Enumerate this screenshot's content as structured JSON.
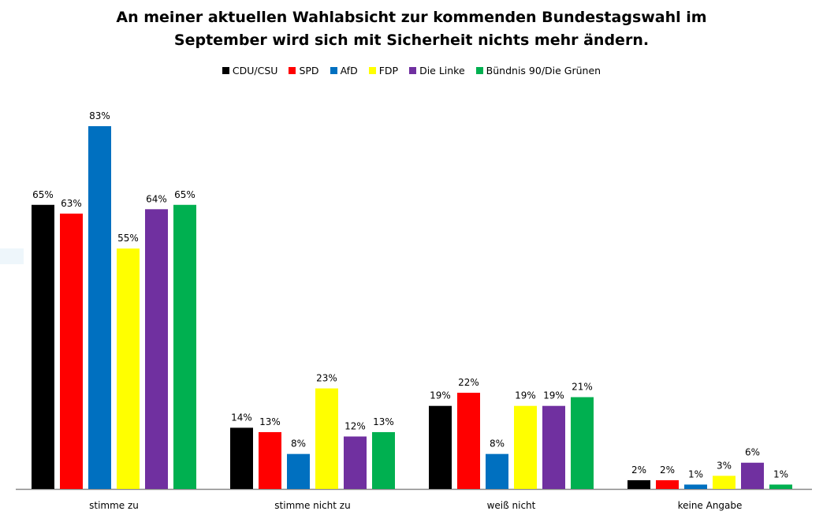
{
  "chart_data": {
    "type": "bar",
    "title": "An meiner aktuellen Wahlabsicht zur kommenden Bundestagswahl im September wird sich mit Sicherheit nichts mehr ändern.",
    "title_lines": [
      "An meiner aktuellen Wahlabsicht zur kommenden Bundestagswahl im",
      "September wird sich mit Sicherheit nichts mehr ändern."
    ],
    "categories": [
      "stimme zu",
      "stimme nicht zu",
      "weiß nicht",
      "keine Angabe"
    ],
    "series": [
      {
        "name": "CDU/CSU",
        "color": "#000000",
        "values": [
          65,
          14,
          19,
          2
        ]
      },
      {
        "name": "SPD",
        "color": "#ff0000",
        "values": [
          63,
          13,
          22,
          2
        ]
      },
      {
        "name": "AfD",
        "color": "#0070c0",
        "values": [
          83,
          8,
          8,
          1
        ]
      },
      {
        "name": "FDP",
        "color": "#ffff00",
        "values": [
          55,
          23,
          19,
          3
        ]
      },
      {
        "name": "Die Linke",
        "color": "#7030a0",
        "values": [
          64,
          12,
          19,
          6
        ]
      },
      {
        "name": "Bündnis 90/Die Grünen",
        "color": "#00b050",
        "values": [
          65,
          13,
          21,
          1
        ]
      }
    ],
    "value_suffix": "%",
    "ylim": [
      0,
      83
    ],
    "grid": false,
    "legend": "top"
  }
}
